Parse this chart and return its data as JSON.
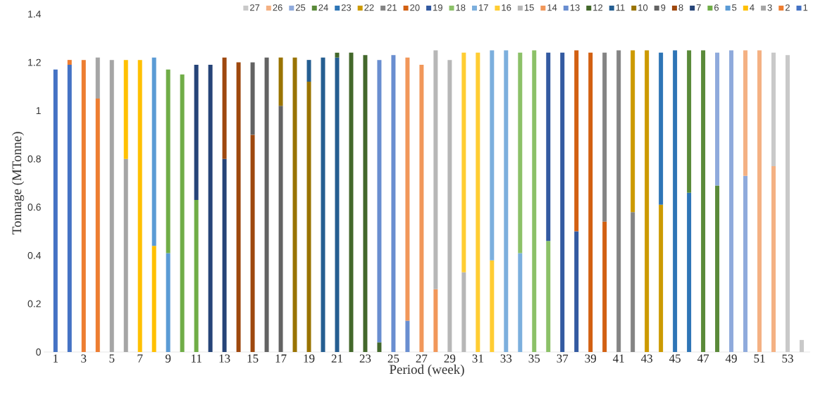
{
  "chart_data": {
    "type": "bar",
    "stacked": true,
    "xlabel": "Period (week)",
    "ylabel": "Tonnage (MTonne)",
    "categories": [
      "1",
      null,
      "3",
      null,
      "5",
      null,
      "7",
      null,
      "9",
      null,
      "11",
      null,
      "13",
      null,
      "15",
      null,
      "17",
      null,
      "19",
      null,
      "21",
      null,
      "23",
      null,
      "25",
      null,
      "27",
      null,
      "29",
      null,
      "31",
      null,
      "33",
      null,
      "35",
      null,
      "37",
      null,
      "39",
      null,
      "41",
      null,
      "43",
      null,
      "45",
      null,
      "47",
      null,
      "49",
      null,
      "51",
      null,
      "53",
      null
    ],
    "ylim": [
      0,
      1.4
    ],
    "yticks": [
      0,
      0.2,
      0.4,
      0.6,
      0.8,
      1,
      1.2,
      1.4
    ],
    "legend": "top",
    "series": [
      {
        "name": "1",
        "color": "#4472c4",
        "values": [
          1.17,
          1.19,
          null,
          null,
          null,
          null,
          null,
          null,
          null,
          null,
          null,
          null,
          null,
          null,
          null,
          null,
          null,
          null,
          null,
          null,
          null,
          null,
          null,
          null,
          null,
          null,
          null,
          null,
          null,
          null,
          null,
          null,
          null,
          null,
          null,
          null,
          null,
          null,
          null,
          null,
          null,
          null,
          null,
          null,
          null,
          null,
          null,
          null,
          null,
          null,
          null,
          null,
          null,
          null
        ]
      },
      {
        "name": "2",
        "color": "#ed7d31",
        "values": [
          null,
          0.02,
          1.21,
          1.05,
          null,
          null,
          null,
          null,
          null,
          null,
          null,
          null,
          null,
          null,
          null,
          null,
          null,
          null,
          null,
          null,
          null,
          null,
          null,
          null,
          null,
          null,
          null,
          null,
          null,
          null,
          null,
          null,
          null,
          null,
          null,
          null,
          null,
          null,
          null,
          null,
          null,
          null,
          null,
          null,
          null,
          null,
          null,
          null,
          null,
          null,
          null,
          null,
          null,
          null
        ]
      },
      {
        "name": "3",
        "color": "#a5a5a5",
        "values": [
          null,
          null,
          null,
          0.17,
          1.21,
          0.8,
          null,
          null,
          null,
          null,
          null,
          null,
          null,
          null,
          null,
          null,
          null,
          null,
          null,
          null,
          null,
          null,
          null,
          null,
          null,
          null,
          null,
          null,
          null,
          null,
          null,
          null,
          null,
          null,
          null,
          null,
          null,
          null,
          null,
          null,
          null,
          null,
          null,
          null,
          null,
          null,
          null,
          null,
          null,
          null,
          null,
          null,
          null,
          null
        ]
      },
      {
        "name": "4",
        "color": "#ffc000",
        "values": [
          null,
          null,
          null,
          null,
          null,
          0.41,
          1.21,
          0.44,
          null,
          null,
          null,
          null,
          null,
          null,
          null,
          null,
          null,
          null,
          null,
          null,
          null,
          null,
          null,
          null,
          null,
          null,
          null,
          null,
          null,
          null,
          null,
          null,
          null,
          null,
          null,
          null,
          null,
          null,
          null,
          null,
          null,
          null,
          null,
          null,
          null,
          null,
          null,
          null,
          null,
          null,
          null,
          null,
          null,
          null
        ]
      },
      {
        "name": "5",
        "color": "#5b9bd5",
        "values": [
          null,
          null,
          null,
          null,
          null,
          null,
          null,
          0.78,
          0.41,
          null,
          null,
          null,
          null,
          null,
          null,
          null,
          null,
          null,
          null,
          null,
          null,
          null,
          null,
          null,
          null,
          null,
          null,
          null,
          null,
          null,
          null,
          null,
          null,
          null,
          null,
          null,
          null,
          null,
          null,
          null,
          null,
          null,
          null,
          null,
          null,
          null,
          null,
          null,
          null,
          null,
          null,
          null,
          null,
          null
        ]
      },
      {
        "name": "6",
        "color": "#70ad47",
        "values": [
          null,
          null,
          null,
          null,
          null,
          null,
          null,
          null,
          0.76,
          1.15,
          0.63,
          null,
          null,
          null,
          null,
          null,
          null,
          null,
          null,
          null,
          null,
          null,
          null,
          null,
          null,
          null,
          null,
          null,
          null,
          null,
          null,
          null,
          null,
          null,
          null,
          null,
          null,
          null,
          null,
          null,
          null,
          null,
          null,
          null,
          null,
          null,
          null,
          null,
          null,
          null,
          null,
          null,
          null,
          null
        ]
      },
      {
        "name": "7",
        "color": "#264478",
        "values": [
          null,
          null,
          null,
          null,
          null,
          null,
          null,
          null,
          null,
          null,
          0.56,
          1.19,
          0.8,
          null,
          null,
          null,
          null,
          null,
          null,
          null,
          null,
          null,
          null,
          null,
          null,
          null,
          null,
          null,
          null,
          null,
          null,
          null,
          null,
          null,
          null,
          null,
          null,
          null,
          null,
          null,
          null,
          null,
          null,
          null,
          null,
          null,
          null,
          null,
          null,
          null,
          null,
          null,
          null,
          null
        ]
      },
      {
        "name": "8",
        "color": "#9e480e",
        "values": [
          null,
          null,
          null,
          null,
          null,
          null,
          null,
          null,
          null,
          null,
          null,
          null,
          0.42,
          1.2,
          0.9,
          null,
          null,
          null,
          null,
          null,
          null,
          null,
          null,
          null,
          null,
          null,
          null,
          null,
          null,
          null,
          null,
          null,
          null,
          null,
          null,
          null,
          null,
          null,
          null,
          null,
          null,
          null,
          null,
          null,
          null,
          null,
          null,
          null,
          null,
          null,
          null,
          null,
          null,
          null
        ]
      },
      {
        "name": "9",
        "color": "#636363",
        "values": [
          null,
          null,
          null,
          null,
          null,
          null,
          null,
          null,
          null,
          null,
          null,
          null,
          null,
          null,
          0.3,
          1.22,
          1.02,
          null,
          null,
          null,
          null,
          null,
          null,
          null,
          null,
          null,
          null,
          null,
          null,
          null,
          null,
          null,
          null,
          null,
          null,
          null,
          null,
          null,
          null,
          null,
          null,
          null,
          null,
          null,
          null,
          null,
          null,
          null,
          null,
          null,
          null,
          null,
          null,
          null
        ]
      },
      {
        "name": "10",
        "color": "#997300",
        "values": [
          null,
          null,
          null,
          null,
          null,
          null,
          null,
          null,
          null,
          null,
          null,
          null,
          null,
          null,
          null,
          null,
          0.2,
          1.22,
          1.12,
          null,
          null,
          null,
          null,
          null,
          null,
          null,
          null,
          null,
          null,
          null,
          null,
          null,
          null,
          null,
          null,
          null,
          null,
          null,
          null,
          null,
          null,
          null,
          null,
          null,
          null,
          null,
          null,
          null,
          null,
          null,
          null,
          null,
          null,
          null
        ]
      },
      {
        "name": "11",
        "color": "#255e91",
        "values": [
          null,
          null,
          null,
          null,
          null,
          null,
          null,
          null,
          null,
          null,
          null,
          null,
          null,
          null,
          null,
          null,
          null,
          null,
          0.09,
          1.22,
          1.22,
          null,
          null,
          null,
          null,
          null,
          null,
          null,
          null,
          null,
          null,
          null,
          null,
          null,
          null,
          null,
          null,
          null,
          null,
          null,
          null,
          null,
          null,
          null,
          null,
          null,
          null,
          null,
          null,
          null,
          null,
          null,
          null,
          null
        ]
      },
      {
        "name": "12",
        "color": "#43682b",
        "values": [
          null,
          null,
          null,
          null,
          null,
          null,
          null,
          null,
          null,
          null,
          null,
          null,
          null,
          null,
          null,
          null,
          null,
          null,
          null,
          null,
          0.02,
          1.24,
          1.23,
          0.04,
          null,
          null,
          null,
          null,
          null,
          null,
          null,
          null,
          null,
          null,
          null,
          null,
          null,
          null,
          null,
          null,
          null,
          null,
          null,
          null,
          null,
          null,
          null,
          null,
          null,
          null,
          null,
          null,
          null,
          null
        ]
      },
      {
        "name": "13",
        "color": "#698ed0",
        "values": [
          null,
          null,
          null,
          null,
          null,
          null,
          null,
          null,
          null,
          null,
          null,
          null,
          null,
          null,
          null,
          null,
          null,
          null,
          null,
          null,
          null,
          null,
          null,
          1.17,
          1.23,
          0.13,
          null,
          null,
          null,
          null,
          null,
          null,
          null,
          null,
          null,
          null,
          null,
          null,
          null,
          null,
          null,
          null,
          null,
          null,
          null,
          null,
          null,
          null,
          null,
          null,
          null,
          null,
          null,
          null
        ]
      },
      {
        "name": "14",
        "color": "#f1975a",
        "values": [
          null,
          null,
          null,
          null,
          null,
          null,
          null,
          null,
          null,
          null,
          null,
          null,
          null,
          null,
          null,
          null,
          null,
          null,
          null,
          null,
          null,
          null,
          null,
          null,
          null,
          1.09,
          1.19,
          0.26,
          null,
          null,
          null,
          null,
          null,
          null,
          null,
          null,
          null,
          null,
          null,
          null,
          null,
          null,
          null,
          null,
          null,
          null,
          null,
          null,
          null,
          null,
          null,
          null,
          null,
          null
        ]
      },
      {
        "name": "15",
        "color": "#b7b7b7",
        "values": [
          null,
          null,
          null,
          null,
          null,
          null,
          null,
          null,
          null,
          null,
          null,
          null,
          null,
          null,
          null,
          null,
          null,
          null,
          null,
          null,
          null,
          null,
          null,
          null,
          null,
          null,
          null,
          0.99,
          1.21,
          0.33,
          null,
          null,
          null,
          null,
          null,
          null,
          null,
          null,
          null,
          null,
          null,
          null,
          null,
          null,
          null,
          null,
          null,
          null,
          null,
          null,
          null,
          null,
          null,
          null
        ]
      },
      {
        "name": "16",
        "color": "#ffcd33",
        "values": [
          null,
          null,
          null,
          null,
          null,
          null,
          null,
          null,
          null,
          null,
          null,
          null,
          null,
          null,
          null,
          null,
          null,
          null,
          null,
          null,
          null,
          null,
          null,
          null,
          null,
          null,
          null,
          null,
          null,
          0.91,
          1.24,
          0.38,
          null,
          null,
          null,
          null,
          null,
          null,
          null,
          null,
          null,
          null,
          null,
          null,
          null,
          null,
          null,
          null,
          null,
          null,
          null,
          null,
          null,
          null
        ]
      },
      {
        "name": "17",
        "color": "#7cafdd",
        "values": [
          null,
          null,
          null,
          null,
          null,
          null,
          null,
          null,
          null,
          null,
          null,
          null,
          null,
          null,
          null,
          null,
          null,
          null,
          null,
          null,
          null,
          null,
          null,
          null,
          null,
          null,
          null,
          null,
          null,
          null,
          null,
          0.87,
          1.25,
          0.41,
          null,
          null,
          null,
          null,
          null,
          null,
          null,
          null,
          null,
          null,
          null,
          null,
          null,
          null,
          null,
          null,
          null,
          null,
          null,
          null
        ]
      },
      {
        "name": "18",
        "color": "#8cc168",
        "values": [
          null,
          null,
          null,
          null,
          null,
          null,
          null,
          null,
          null,
          null,
          null,
          null,
          null,
          null,
          null,
          null,
          null,
          null,
          null,
          null,
          null,
          null,
          null,
          null,
          null,
          null,
          null,
          null,
          null,
          null,
          null,
          null,
          null,
          0.83,
          1.25,
          0.46,
          null,
          null,
          null,
          null,
          null,
          null,
          null,
          null,
          null,
          null,
          null,
          null,
          null,
          null,
          null,
          null,
          null,
          null
        ]
      },
      {
        "name": "19",
        "color": "#335aa1",
        "values": [
          null,
          null,
          null,
          null,
          null,
          null,
          null,
          null,
          null,
          null,
          null,
          null,
          null,
          null,
          null,
          null,
          null,
          null,
          null,
          null,
          null,
          null,
          null,
          null,
          null,
          null,
          null,
          null,
          null,
          null,
          null,
          null,
          null,
          null,
          null,
          0.78,
          1.24,
          0.5,
          null,
          null,
          null,
          null,
          null,
          null,
          null,
          null,
          null,
          null,
          null,
          null,
          null,
          null,
          null,
          null
        ]
      },
      {
        "name": "20",
        "color": "#d26012",
        "values": [
          null,
          null,
          null,
          null,
          null,
          null,
          null,
          null,
          null,
          null,
          null,
          null,
          null,
          null,
          null,
          null,
          null,
          null,
          null,
          null,
          null,
          null,
          null,
          null,
          null,
          null,
          null,
          null,
          null,
          null,
          null,
          null,
          null,
          null,
          null,
          null,
          null,
          0.75,
          1.24,
          0.54,
          null,
          null,
          null,
          null,
          null,
          null,
          null,
          null,
          null,
          null,
          null,
          null,
          null,
          null
        ]
      },
      {
        "name": "21",
        "color": "#848484",
        "values": [
          null,
          null,
          null,
          null,
          null,
          null,
          null,
          null,
          null,
          null,
          null,
          null,
          null,
          null,
          null,
          null,
          null,
          null,
          null,
          null,
          null,
          null,
          null,
          null,
          null,
          null,
          null,
          null,
          null,
          null,
          null,
          null,
          null,
          null,
          null,
          null,
          null,
          null,
          null,
          0.7,
          1.25,
          0.58,
          null,
          null,
          null,
          null,
          null,
          null,
          null,
          null,
          null,
          null,
          null,
          null
        ]
      },
      {
        "name": "22",
        "color": "#cc9a00",
        "values": [
          null,
          null,
          null,
          null,
          null,
          null,
          null,
          null,
          null,
          null,
          null,
          null,
          null,
          null,
          null,
          null,
          null,
          null,
          null,
          null,
          null,
          null,
          null,
          null,
          null,
          null,
          null,
          null,
          null,
          null,
          null,
          null,
          null,
          null,
          null,
          null,
          null,
          null,
          null,
          null,
          null,
          0.67,
          1.25,
          0.61,
          null,
          null,
          null,
          null,
          null,
          null,
          null,
          null,
          null,
          null
        ]
      },
      {
        "name": "23",
        "color": "#2e75b6",
        "values": [
          null,
          null,
          null,
          null,
          null,
          null,
          null,
          null,
          null,
          null,
          null,
          null,
          null,
          null,
          null,
          null,
          null,
          null,
          null,
          null,
          null,
          null,
          null,
          null,
          null,
          null,
          null,
          null,
          null,
          null,
          null,
          null,
          null,
          null,
          null,
          null,
          null,
          null,
          null,
          null,
          null,
          null,
          null,
          0.63,
          1.25,
          0.66,
          null,
          null,
          null,
          null,
          null,
          null,
          null,
          null
        ]
      },
      {
        "name": "24",
        "color": "#5a8a39",
        "values": [
          null,
          null,
          null,
          null,
          null,
          null,
          null,
          null,
          null,
          null,
          null,
          null,
          null,
          null,
          null,
          null,
          null,
          null,
          null,
          null,
          null,
          null,
          null,
          null,
          null,
          null,
          null,
          null,
          null,
          null,
          null,
          null,
          null,
          null,
          null,
          null,
          null,
          null,
          null,
          null,
          null,
          null,
          null,
          null,
          null,
          0.59,
          1.25,
          0.69,
          null,
          null,
          null,
          null,
          null,
          null
        ]
      },
      {
        "name": "25",
        "color": "#8faadc",
        "values": [
          null,
          null,
          null,
          null,
          null,
          null,
          null,
          null,
          null,
          null,
          null,
          null,
          null,
          null,
          null,
          null,
          null,
          null,
          null,
          null,
          null,
          null,
          null,
          null,
          null,
          null,
          null,
          null,
          null,
          null,
          null,
          null,
          null,
          null,
          null,
          null,
          null,
          null,
          null,
          null,
          null,
          null,
          null,
          null,
          null,
          null,
          null,
          0.55,
          1.25,
          0.73,
          null,
          null,
          null,
          null
        ]
      },
      {
        "name": "26",
        "color": "#f4b183",
        "values": [
          null,
          null,
          null,
          null,
          null,
          null,
          null,
          null,
          null,
          null,
          null,
          null,
          null,
          null,
          null,
          null,
          null,
          null,
          null,
          null,
          null,
          null,
          null,
          null,
          null,
          null,
          null,
          null,
          null,
          null,
          null,
          null,
          null,
          null,
          null,
          null,
          null,
          null,
          null,
          null,
          null,
          null,
          null,
          null,
          null,
          null,
          null,
          null,
          null,
          0.52,
          1.25,
          0.77,
          null,
          null
        ]
      },
      {
        "name": "27",
        "color": "#c9c9c9",
        "values": [
          null,
          null,
          null,
          null,
          null,
          null,
          null,
          null,
          null,
          null,
          null,
          null,
          null,
          null,
          null,
          null,
          null,
          null,
          null,
          null,
          null,
          null,
          null,
          null,
          null,
          null,
          null,
          null,
          null,
          null,
          null,
          null,
          null,
          null,
          null,
          null,
          null,
          null,
          null,
          null,
          null,
          null,
          null,
          null,
          null,
          null,
          null,
          null,
          null,
          null,
          null,
          0.47,
          1.23,
          0.05
        ]
      }
    ]
  }
}
